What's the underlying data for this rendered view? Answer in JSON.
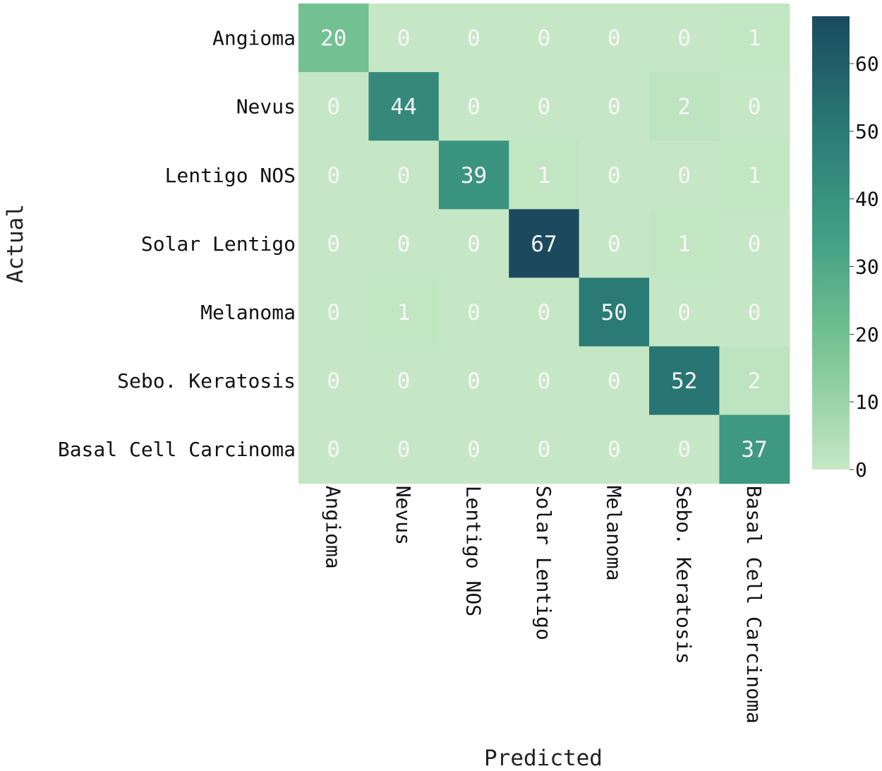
{
  "chart_data": {
    "type": "heatmap",
    "title": "",
    "xlabel": "Predicted",
    "ylabel": "Actual",
    "x_categories": [
      "Angioma",
      "Nevus",
      "Lentigo NOS",
      "Solar Lentigo",
      "Melanoma",
      "Sebo. Keratosis",
      "Basal Cell Carcinoma"
    ],
    "y_categories": [
      "Angioma",
      "Nevus",
      "Lentigo NOS",
      "Solar Lentigo",
      "Melanoma",
      "Sebo. Keratosis",
      "Basal Cell Carcinoma"
    ],
    "values": [
      [
        20,
        0,
        0,
        0,
        0,
        0,
        1
      ],
      [
        0,
        44,
        0,
        0,
        0,
        2,
        0
      ],
      [
        0,
        0,
        39,
        1,
        0,
        0,
        1
      ],
      [
        0,
        0,
        0,
        67,
        0,
        1,
        0
      ],
      [
        0,
        1,
        0,
        0,
        50,
        0,
        0
      ],
      [
        0,
        0,
        0,
        0,
        0,
        52,
        2
      ],
      [
        0,
        0,
        0,
        0,
        0,
        0,
        37
      ]
    ],
    "colorbar": {
      "min": 0,
      "max": 67,
      "ticks": [
        0,
        10,
        20,
        30,
        40,
        50,
        60
      ],
      "color_stops": [
        "#c6e7c5",
        "#7ec795",
        "#44a184",
        "#2a7a76",
        "#1b4a5f"
      ]
    },
    "grid": false,
    "legend": "colorbar-right"
  }
}
